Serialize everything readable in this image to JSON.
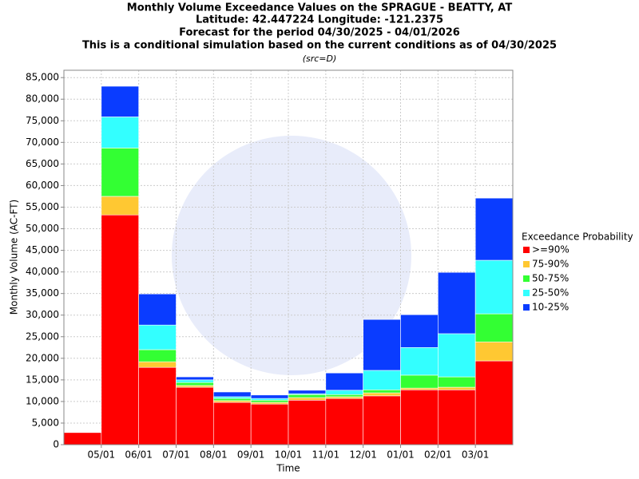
{
  "chart_data": {
    "type": "stacked_bar",
    "title": "Monthly Volume Exceedance Values on the SPRAGUE - BEATTY, AT",
    "subtitle_lines": [
      "Latitude: 42.447224 Longitude: -121.2375",
      "Forecast for the period 04/30/2025 - 04/01/2026",
      "This is a conditional simulation based on the current conditions as of 04/30/2025"
    ],
    "source_note": "(src=D)",
    "x_label": "Time",
    "y_label": "Monthly Volume (AC-FT)",
    "legend_title": "Exceedance Probability",
    "legend_position": "right",
    "grid": true,
    "categories": [
      null,
      null,
      null,
      null,
      null,
      null,
      null,
      null,
      null,
      null,
      null,
      null
    ],
    "xticks": [
      "05/01",
      "06/01",
      "07/01",
      "08/01",
      "09/01",
      "10/01",
      "11/01",
      "12/01",
      "01/01",
      "02/01",
      "03/01"
    ],
    "ylim": [
      0,
      86700
    ],
    "yticks": [
      0,
      {
        "value": 5000,
        "label": "5,000"
      },
      {
        "value": 10000,
        "label": "10,000"
      },
      {
        "value": 15000,
        "label": "15,000"
      },
      {
        "value": 20000,
        "label": "20,000"
      },
      {
        "value": 25000,
        "label": "25,000"
      },
      {
        "value": 30000,
        "label": "30,000"
      },
      {
        "value": 35000,
        "label": "35,000"
      },
      {
        "value": 40000,
        "label": "40,000"
      },
      {
        "value": 45000,
        "label": "45,000"
      },
      {
        "value": 50000,
        "label": "50,000"
      },
      {
        "value": 55000,
        "label": "55,000"
      },
      {
        "value": 60000,
        "label": "60,000"
      },
      {
        "value": 65000,
        "label": "65,000"
      },
      {
        "value": 70000,
        "label": "70,000"
      },
      {
        "value": 75000,
        "label": "75,000"
      },
      {
        "value": 80000,
        "label": "80,000"
      },
      {
        "value": 85000,
        "label": "85,000"
      }
    ],
    "series": [
      {
        "name": ">=90%",
        "color": "#ff0000",
        "values": [
          2800,
          53200,
          17900,
          13300,
          9800,
          9400,
          10300,
          10700,
          11300,
          12700,
          12700,
          19400
        ]
      },
      {
        "name": "75-90%",
        "color": "#ffc832",
        "values": [
          0,
          4300,
          1300,
          400,
          400,
          400,
          600,
          400,
          700,
          400,
          600,
          4400
        ]
      },
      {
        "name": "50-75%",
        "color": "#33ff33",
        "values": [
          0,
          11200,
          2800,
          700,
          500,
          500,
          700,
          500,
          700,
          3000,
          2400,
          6500
        ]
      },
      {
        "name": "25-50%",
        "color": "#33ffff",
        "values": [
          0,
          7200,
          5700,
          600,
          400,
          400,
          200,
          1000,
          4500,
          6400,
          10000,
          12400
        ]
      },
      {
        "name": "10-25%",
        "color": "#0a3cff",
        "values": [
          0,
          7100,
          7200,
          700,
          1100,
          800,
          800,
          4000,
          11800,
          7600,
          14200,
          14400
        ]
      }
    ]
  }
}
